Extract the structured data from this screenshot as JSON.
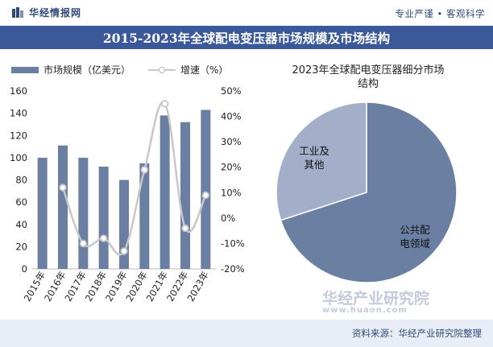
{
  "header": {
    "brand": "华经情报网",
    "slogan": "专业严谨 • 客观科学"
  },
  "title": "2015-2023年全球配电变压器市场规模及市场结构",
  "source": "资料来源：华经产业研究院整理",
  "watermark": {
    "name": "华经产业研究院",
    "url": "www.huaon.com"
  },
  "colors": {
    "bar": "#6b7fa3",
    "line": "#c8c8c8",
    "pie_public": "#6b7fa3",
    "pie_industry": "#a3afc8",
    "title_bg": "#3b5998"
  },
  "chart_data": [
    {
      "type": "bar",
      "title": "",
      "categories": [
        "2015年",
        "2016年",
        "2017年",
        "2018年",
        "2019年",
        "2020年",
        "2021年",
        "2022年",
        "2023年"
      ],
      "series": [
        {
          "name": "市场规模（亿美元）",
          "type": "bar",
          "axis": "left",
          "values": [
            100,
            111,
            100,
            92,
            80,
            95,
            138,
            132,
            143
          ]
        },
        {
          "name": "增速（%）",
          "type": "line",
          "axis": "right",
          "values": [
            null,
            12,
            -10,
            -8,
            -13,
            19,
            45,
            -4,
            9
          ]
        }
      ],
      "y_left": {
        "min": 0,
        "max": 160,
        "ticks": [
          0,
          20,
          40,
          60,
          80,
          100,
          120,
          140,
          160
        ]
      },
      "y_right": {
        "min": -20,
        "max": 50,
        "ticks": [
          "-20%",
          "-10%",
          "0%",
          "10%",
          "20%",
          "30%",
          "40%",
          "50%"
        ]
      },
      "legend": [
        "市场规模（亿美元）",
        "增速（%）"
      ]
    },
    {
      "type": "pie",
      "title": "2023年全球配电变压器细分市场结构",
      "title_lines": [
        "2023年全球配电变压器细分市场",
        "结构"
      ],
      "slices": [
        {
          "name": "公共配电领域",
          "label_lines": [
            "公共配",
            "电领域"
          ],
          "value": 70
        },
        {
          "name": "工业及其他",
          "label_lines": [
            "工业及",
            "其他"
          ],
          "value": 30
        }
      ]
    }
  ]
}
